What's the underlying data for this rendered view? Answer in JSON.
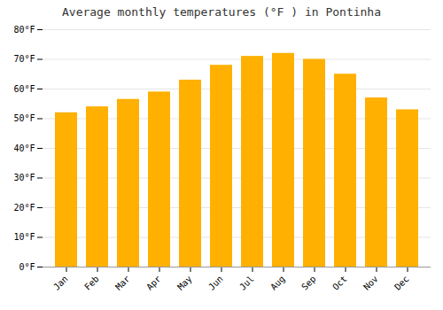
{
  "chart_data": {
    "type": "bar",
    "title": "Average monthly temperatures (°F ) in Pontinha",
    "categories": [
      "Jan",
      "Feb",
      "Mar",
      "Apr",
      "May",
      "Jun",
      "Jul",
      "Aug",
      "Sep",
      "Oct",
      "Nov",
      "Dec"
    ],
    "values": [
      52,
      54,
      56.5,
      59,
      63,
      68,
      71,
      72,
      70,
      65,
      57,
      53
    ],
    "color": "#FFB000",
    "ylim": [
      0,
      80
    ],
    "yticks": [
      {
        "value": 0,
        "label": "0°F"
      },
      {
        "value": 10,
        "label": "10°F"
      },
      {
        "value": 20,
        "label": "20°F"
      },
      {
        "value": 30,
        "label": "30°F"
      },
      {
        "value": 40,
        "label": "40°F"
      },
      {
        "value": 50,
        "label": "50°F"
      },
      {
        "value": 60,
        "label": "60°F"
      },
      {
        "value": 70,
        "label": "70°F"
      },
      {
        "value": 80,
        "label": "80°F"
      }
    ],
    "grid": true
  }
}
